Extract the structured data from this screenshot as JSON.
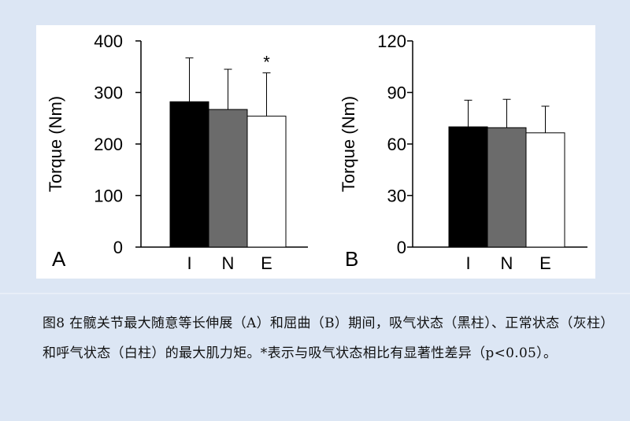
{
  "figure": {
    "caption": "图8  在髋关节最大随意等长伸展（A）和屈曲（B）期间，吸气状态（黑柱）、正常状态（灰柱）和呼气状态（白柱）的最大肌力矩。*表示与吸气状态相比有显著性差异（p<0.05）。"
  },
  "colors": {
    "I": "#000000",
    "N": "#6b6b6b",
    "E": "#ffffff"
  },
  "chart_data": [
    {
      "type": "bar",
      "panel_label": "A",
      "ylabel": "Torque (Nm)",
      "ylim": [
        0,
        400
      ],
      "yticks": [
        "0",
        "100",
        "200",
        "300",
        "400"
      ],
      "categories": [
        "I",
        "N",
        "E"
      ],
      "values": [
        282,
        267,
        254
      ],
      "errors": [
        85,
        78,
        84
      ],
      "annotations": [
        {
          "category": "E",
          "text": "*"
        }
      ]
    },
    {
      "type": "bar",
      "panel_label": "B",
      "ylabel": "Torque (Nm)",
      "ylim": [
        0,
        120
      ],
      "yticks": [
        "0",
        "30",
        "60",
        "90",
        "120"
      ],
      "categories": [
        "I",
        "N",
        "E"
      ],
      "values": [
        70,
        69.5,
        66.5
      ],
      "errors": [
        15.5,
        16.5,
        15.5
      ],
      "annotations": []
    }
  ]
}
